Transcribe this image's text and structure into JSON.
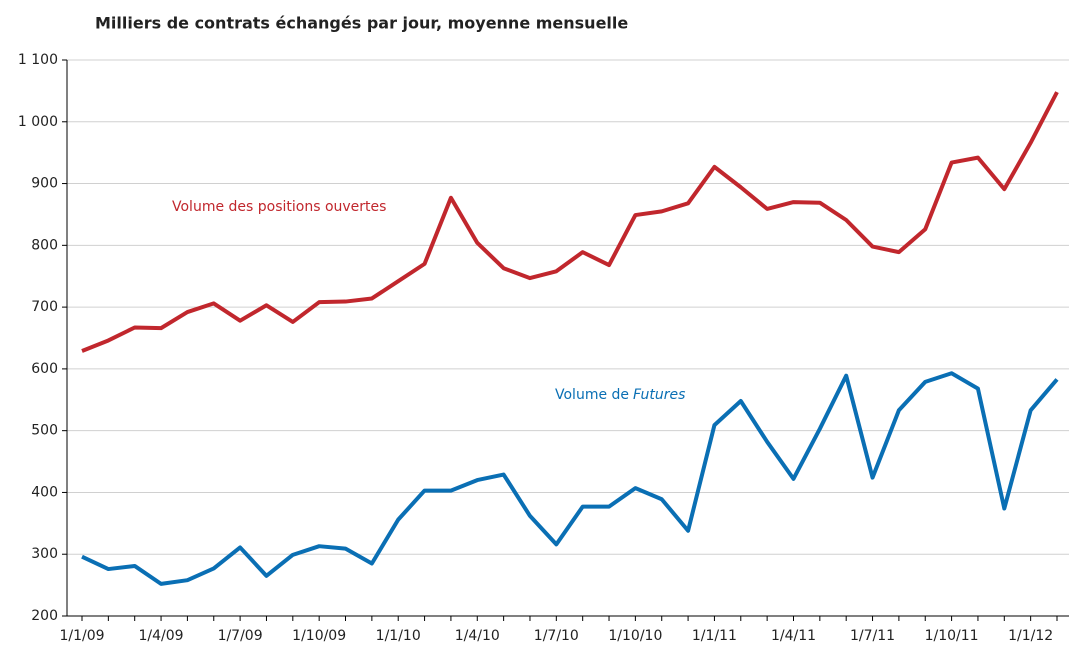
{
  "chart_data": {
    "type": "line",
    "title": "Milliers de contrats échangés par jour, moyenne mensuelle",
    "categories": [
      "1/1/09",
      null,
      null,
      "1/4/09",
      null,
      null,
      "1/7/09",
      null,
      null,
      "1/10/09",
      null,
      null,
      "1/1/10",
      null,
      null,
      "1/4/10",
      null,
      null,
      "1/7/10",
      null,
      null,
      "1/10/10",
      null,
      null,
      "1/1/11",
      null,
      null,
      "1/4/11",
      null,
      null,
      "1/7/11",
      null,
      null,
      "1/10/11",
      null,
      null,
      "1/1/12",
      null
    ],
    "series": [
      {
        "name": "Volume des positions ouvertes",
        "color": "#c1272d",
        "values": [
          629,
          646,
          667,
          666,
          692,
          706,
          678,
          703,
          676,
          708,
          709,
          714,
          742,
          770,
          877,
          804,
          763,
          747,
          758,
          789,
          768,
          849,
          855,
          868,
          927,
          894,
          859,
          870,
          869,
          841,
          798,
          789,
          826,
          934,
          942,
          891,
          966,
          1048
        ]
      },
      {
        "name": [
          "Volume de",
          "Futures"
        ],
        "color": "#0a6fb4",
        "values": [
          296,
          276,
          281,
          252,
          258,
          277,
          311,
          265,
          299,
          313,
          309,
          285,
          356,
          403,
          403,
          420,
          429,
          362,
          316,
          377,
          377,
          407,
          389,
          338,
          509,
          548,
          482,
          422,
          503,
          589,
          424,
          533,
          579,
          593,
          568,
          374,
          533,
          583
        ]
      }
    ],
    "ylim": [
      200,
      1100
    ],
    "yticks": [
      200,
      300,
      400,
      500,
      600,
      700,
      800,
      900,
      {
        "value": 1000,
        "label": "1 000"
      },
      {
        "value": 1100,
        "label": "1 100"
      }
    ],
    "grid": true
  }
}
